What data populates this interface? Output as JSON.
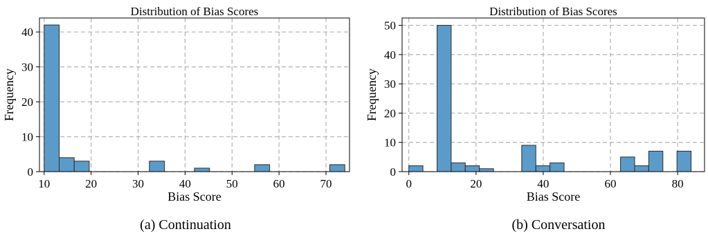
{
  "chart_data": [
    {
      "type": "bar",
      "title": "Distribution of Bias Scores",
      "xlabel": "Bias Score",
      "ylabel": "Frequency",
      "caption": "(a) Continuation",
      "xlim": [
        9,
        75
      ],
      "ylim": [
        0,
        44
      ],
      "xticks": [
        10,
        20,
        30,
        40,
        50,
        60,
        70
      ],
      "yticks": [
        0,
        10,
        20,
        30,
        40
      ],
      "grid": true,
      "bin_width": 3.2,
      "bins": [
        {
          "x0": 10.0,
          "count": 42
        },
        {
          "x0": 13.2,
          "count": 4
        },
        {
          "x0": 16.4,
          "count": 3
        },
        {
          "x0": 32.4,
          "count": 3
        },
        {
          "x0": 42.0,
          "count": 1
        },
        {
          "x0": 54.8,
          "count": 2
        },
        {
          "x0": 70.8,
          "count": 2
        }
      ],
      "bar_color": "#5b9bc9"
    },
    {
      "type": "bar",
      "title": "Distribution of Bias Scores",
      "xlabel": "Bias Score",
      "ylabel": "Frequency",
      "caption": "(b) Conversation",
      "xlim": [
        -2,
        88
      ],
      "ylim": [
        0,
        52.5
      ],
      "xticks": [
        0,
        20,
        40,
        60,
        80
      ],
      "yticks": [
        0,
        10,
        20,
        30,
        40,
        50
      ],
      "grid": true,
      "bin_width": 4.2,
      "bins": [
        {
          "x0": 0.0,
          "count": 2
        },
        {
          "x0": 8.4,
          "count": 50
        },
        {
          "x0": 12.6,
          "count": 3
        },
        {
          "x0": 16.8,
          "count": 2
        },
        {
          "x0": 21.0,
          "count": 1
        },
        {
          "x0": 33.6,
          "count": 9
        },
        {
          "x0": 37.8,
          "count": 2
        },
        {
          "x0": 42.0,
          "count": 3
        },
        {
          "x0": 63.0,
          "count": 5
        },
        {
          "x0": 67.2,
          "count": 2
        },
        {
          "x0": 71.4,
          "count": 7
        },
        {
          "x0": 79.8,
          "count": 7
        }
      ],
      "bar_color": "#5b9bc9"
    }
  ]
}
